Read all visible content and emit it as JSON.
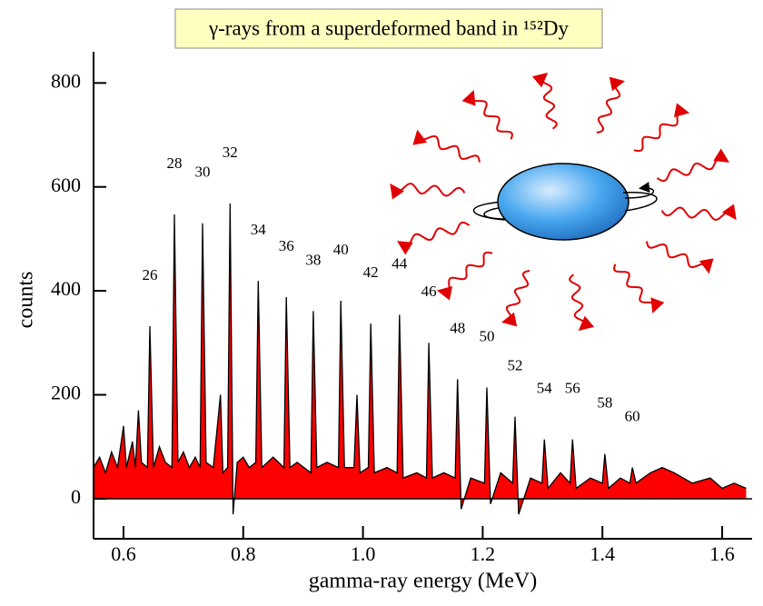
{
  "chart_data": {
    "type": "spectrum",
    "title": "γ-rays from a superdeformed band in ¹⁵²Dy",
    "x_label": "gamma-ray energy (MeV)",
    "y_label": "counts",
    "color": "#ff0000",
    "line_color": "#000000",
    "xlim": [
      0.55,
      1.65
    ],
    "ylim": [
      -77,
      860
    ],
    "xticks": [
      0.6,
      0.8,
      {
        "value": 1,
        "label": "1.0"
      },
      1.2,
      1.4,
      1.6
    ],
    "yticks": [
      0,
      200,
      400,
      600,
      800
    ],
    "x": [
      0.55,
      0.56,
      0.57,
      0.58,
      0.59,
      0.6,
      0.605,
      0.615,
      0.62,
      0.625,
      0.63,
      0.64,
      0.644,
      0.65,
      0.66,
      0.67,
      0.681,
      0.685,
      0.691,
      0.7,
      0.71,
      0.72,
      0.728,
      0.732,
      0.738,
      0.75,
      0.762,
      0.766,
      0.774,
      0.778,
      0.783,
      0.79,
      0.8,
      0.81,
      0.821,
      0.825,
      0.831,
      0.85,
      0.868,
      0.872,
      0.878,
      0.89,
      0.913,
      0.917,
      0.923,
      0.94,
      0.959,
      0.963,
      0.969,
      0.985,
      0.99,
      0.995,
      1.009,
      1.013,
      1.019,
      1.04,
      1.057,
      1.061,
      1.067,
      1.09,
      1.106,
      1.11,
      1.116,
      1.135,
      1.154,
      1.158,
      1.164,
      1.18,
      1.203,
      1.207,
      1.213,
      1.23,
      1.25,
      1.254,
      1.26,
      1.28,
      1.299,
      1.303,
      1.309,
      1.33,
      1.346,
      1.35,
      1.356,
      1.38,
      1.4,
      1.404,
      1.41,
      1.43,
      1.446,
      1.45,
      1.456,
      1.48,
      1.5,
      1.52,
      1.55,
      1.58,
      1.6,
      1.62,
      1.64
    ],
    "values": [
      60,
      80,
      50,
      90,
      60,
      140,
      60,
      110,
      60,
      170,
      70,
      60,
      332,
      60,
      100,
      70,
      60,
      547,
      70,
      90,
      60,
      80,
      60,
      530,
      70,
      60,
      200,
      50,
      60,
      568,
      -30,
      70,
      80,
      60,
      70,
      419,
      60,
      80,
      60,
      388,
      60,
      70,
      50,
      361,
      60,
      70,
      60,
      381,
      60,
      60,
      200,
      50,
      60,
      337,
      50,
      60,
      50,
      354,
      40,
      50,
      40,
      300,
      40,
      50,
      40,
      230,
      -20,
      40,
      30,
      214,
      -10,
      50,
      30,
      158,
      -30,
      40,
      30,
      114,
      20,
      50,
      30,
      114,
      20,
      40,
      30,
      86,
      20,
      40,
      30,
      60,
      30,
      50,
      60,
      50,
      30,
      40,
      20,
      30,
      20
    ],
    "annotations": [
      {
        "text": "26",
        "x": 0.644
      },
      {
        "text": "28",
        "x": 0.685
      },
      {
        "text": "30",
        "x": 0.732
      },
      {
        "text": "32",
        "x": 0.778
      },
      {
        "text": "34",
        "x": 0.825
      },
      {
        "text": "36",
        "x": 0.872
      },
      {
        "text": "38",
        "x": 0.917
      },
      {
        "text": "40",
        "x": 0.963
      },
      {
        "text": "42",
        "x": 1.013
      },
      {
        "text": "44",
        "x": 1.061
      },
      {
        "text": "46",
        "x": 1.11
      },
      {
        "text": "48",
        "x": 1.158
      },
      {
        "text": "50",
        "x": 1.207
      },
      {
        "text": "52",
        "x": 1.254
      },
      {
        "text": "54",
        "x": 1.303
      },
      {
        "text": "56",
        "x": 1.35
      },
      {
        "text": "58",
        "x": 1.404
      },
      {
        "text": "60",
        "x": 1.45
      }
    ]
  }
}
